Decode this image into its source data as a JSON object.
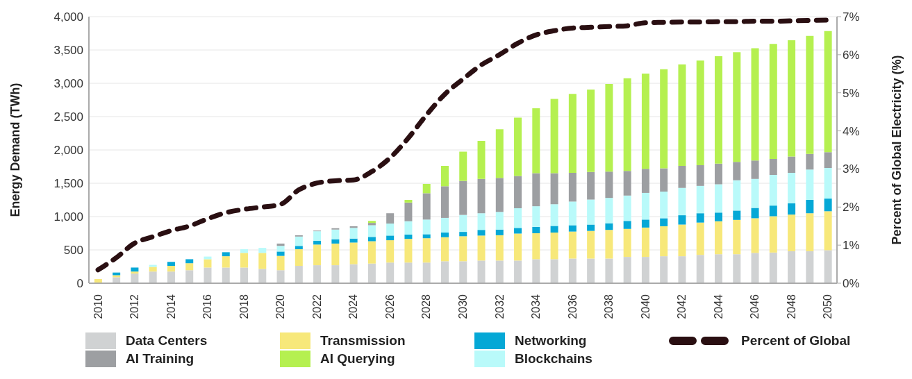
{
  "chart_data": {
    "type": "bar",
    "stacked": true,
    "ylabel": "Energy Demand (TWh)",
    "y2label": "Percent of Global Electricity (%)",
    "categories": [
      "2010",
      null,
      "2012",
      null,
      "2014",
      null,
      "2016",
      null,
      "2018",
      null,
      "2020",
      null,
      "2022",
      null,
      "2024",
      null,
      "2026",
      null,
      "2028",
      null,
      "2030",
      null,
      "2032",
      null,
      "2034",
      null,
      "2036",
      null,
      "2038",
      null,
      "2040",
      null,
      "2042",
      null,
      "2044",
      null,
      "2046",
      null,
      "2048",
      null,
      "2050"
    ],
    "ylim": [
      0,
      4000
    ],
    "yticks": [
      0,
      500,
      {
        "value": 1000,
        "label": "1,000"
      },
      {
        "value": 1500,
        "label": "1,500"
      },
      {
        "value": 2000,
        "label": "2,000"
      },
      {
        "value": 2500,
        "label": "2,500"
      },
      {
        "value": 3000,
        "label": "3,000"
      },
      {
        "value": 3500,
        "label": "3,500"
      },
      {
        "value": 4000,
        "label": "4,000"
      }
    ],
    "y2lim": [
      0,
      7
    ],
    "y2ticks": [
      {
        "value": 0,
        "label": "0%"
      },
      {
        "value": 1,
        "label": "1%"
      },
      {
        "value": 2,
        "label": "2%"
      },
      {
        "value": 3,
        "label": "3%"
      },
      {
        "value": 4,
        "label": "4%"
      },
      {
        "value": 5,
        "label": "5%"
      },
      {
        "value": 6,
        "label": "6%"
      },
      {
        "value": 7,
        "label": "7%"
      }
    ],
    "grid": "y",
    "legend": "bottom",
    "series": [
      {
        "name": "Data Centers",
        "color": "#d0d2d3",
        "values": [
          0,
          90,
          145,
          175,
          175,
          195,
          235,
          235,
          235,
          215,
          195,
          260,
          270,
          270,
          285,
          295,
          310,
          310,
          310,
          330,
          330,
          340,
          340,
          340,
          360,
          360,
          370,
          370,
          370,
          395,
          395,
          405,
          405,
          425,
          435,
          435,
          455,
          460,
          480,
          480,
          495
        ]
      },
      {
        "name": "Transmission",
        "color": "#f7e87a",
        "values": [
          62,
          30,
          30,
          70,
          85,
          105,
          125,
          170,
          220,
          240,
          215,
          250,
          310,
          325,
          325,
          335,
          335,
          355,
          365,
          360,
          375,
          375,
          380,
          405,
          390,
          400,
          405,
          415,
          430,
          420,
          440,
          450,
          475,
          485,
          495,
          515,
          520,
          545,
          550,
          570,
          585
        ]
      },
      {
        "name": "Networking",
        "color": "#05a8d6",
        "values": [
          0,
          40,
          60,
          0,
          60,
          60,
          0,
          60,
          0,
          0,
          65,
          50,
          55,
          65,
          60,
          65,
          70,
          65,
          60,
          70,
          65,
          85,
          85,
          85,
          95,
          100,
          95,
          95,
          100,
          120,
          120,
          120,
          140,
          140,
          130,
          140,
          155,
          160,
          170,
          200,
          190
        ]
      },
      {
        "name": "Blockchains",
        "color": "#b9fafa",
        "values": [
          0,
          0,
          0,
          30,
          0,
          0,
          40,
          0,
          55,
          75,
          85,
          140,
          145,
          145,
          160,
          175,
          180,
          200,
          220,
          220,
          255,
          250,
          265,
          295,
          310,
          325,
          355,
          375,
          380,
          380,
          400,
          400,
          410,
          410,
          425,
          455,
          435,
          460,
          455,
          455,
          460
        ]
      },
      {
        "name": "AI Training",
        "color": "#9d9fa2",
        "values": [
          0,
          0,
          0,
          0,
          0,
          0,
          0,
          0,
          0,
          0,
          35,
          20,
          10,
          20,
          25,
          35,
          155,
          280,
          395,
          475,
          510,
          515,
          510,
          485,
          495,
          465,
          430,
          415,
          395,
          370,
          360,
          350,
          330,
          310,
          310,
          275,
          275,
          240,
          245,
          235,
          235
        ]
      },
      {
        "name": "AI Querying",
        "color": "#b5f050",
        "values": [
          0,
          0,
          0,
          0,
          0,
          0,
          0,
          0,
          0,
          0,
          0,
          0,
          0,
          0,
          0,
          30,
          0,
          40,
          140,
          305,
          440,
          570,
          730,
          875,
          975,
          1115,
          1185,
          1235,
          1315,
          1390,
          1430,
          1485,
          1525,
          1570,
          1610,
          1645,
          1685,
          1725,
          1745,
          1770,
          1820
        ]
      },
      {
        "name": "Percent of Global",
        "type": "line",
        "axis": "y2",
        "color": "#2a0f12",
        "line_style": "dashed",
        "marker": "none",
        "values": [
          0.35,
          0.67,
          1.05,
          1.22,
          1.38,
          1.5,
          1.69,
          1.85,
          1.94,
          2.0,
          2.07,
          2.45,
          2.63,
          2.69,
          2.71,
          2.93,
          3.29,
          3.81,
          4.42,
          4.96,
          5.36,
          5.73,
          6.0,
          6.3,
          6.52,
          6.63,
          6.7,
          6.72,
          6.74,
          6.76,
          6.84,
          6.85,
          6.86,
          6.86,
          6.87,
          6.87,
          6.88,
          6.88,
          6.89,
          6.9,
          6.91
        ]
      }
    ]
  }
}
